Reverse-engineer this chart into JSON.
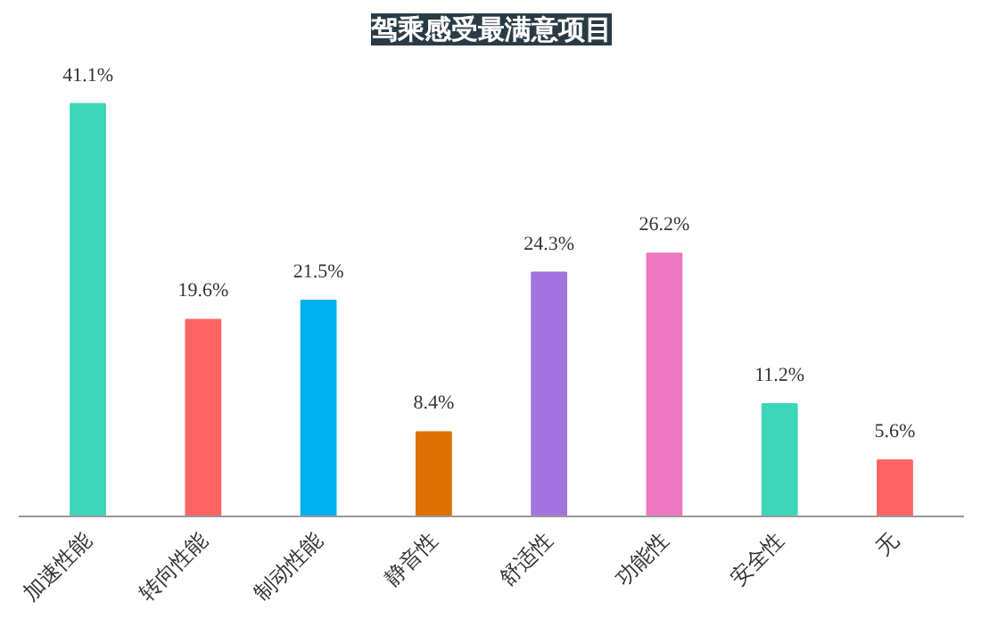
{
  "chart_data": {
    "type": "bar",
    "title": "驾乘感受最满意项目",
    "categories": [
      "加速性能",
      "转向性能",
      "制动性能",
      "静音性",
      "舒适性",
      "功能性",
      "安全性",
      "无"
    ],
    "values": [
      41.1,
      19.6,
      21.5,
      8.4,
      24.3,
      26.2,
      11.2,
      5.6
    ],
    "colors": [
      "#3dd6b8",
      "#ff6464",
      "#00b0ee",
      "#dd7000",
      "#a373e0",
      "#ee78c0",
      "#3dd6b8",
      "#ff6464"
    ],
    "value_labels": [
      "41.1%",
      "19.6%",
      "21.5%",
      "8.4%",
      "24.3%",
      "26.2%",
      "11.2%",
      "5.6%"
    ],
    "data_labels": true
  }
}
